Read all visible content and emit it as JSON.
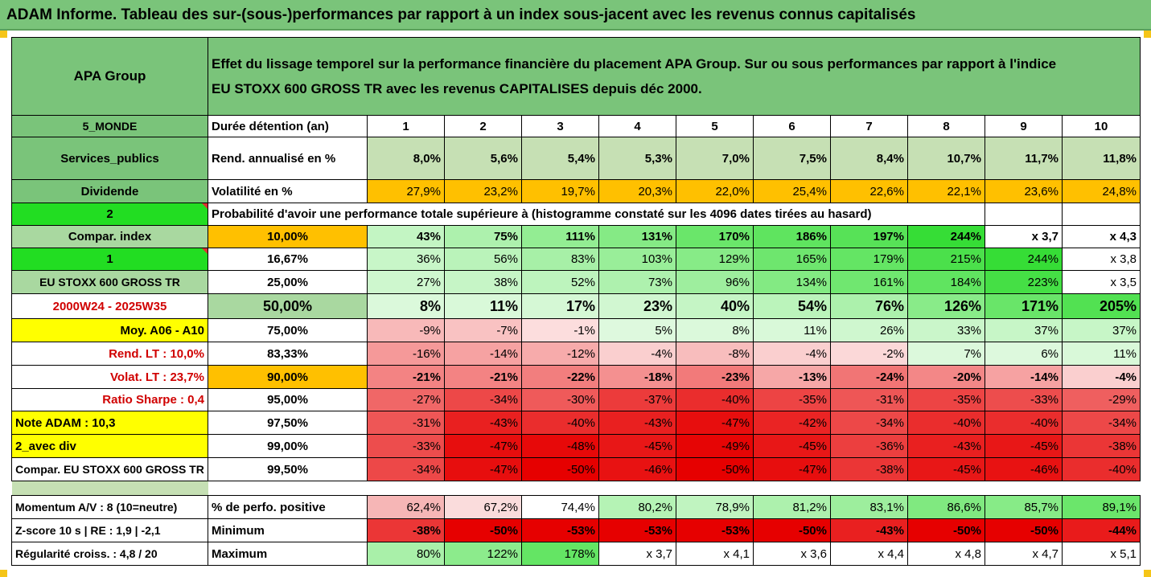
{
  "title": "ADAM Informe. Tableau des sur-(sous-)performances par rapport à un index sous-jacent avec les revenus connus capitalisés",
  "colors": {
    "header_green": "#7ac47a",
    "pale_green": "#c6e0b4",
    "amber": "#ffc000",
    "lime": "#22dd22",
    "yellow": "#ffff00",
    "red_text": "#d00000",
    "corner_marker": "#f5c518"
  },
  "header": {
    "company": "APA Group",
    "description_line1": "Effet du lissage temporel sur la performance financière du placement APA Group. Sur ou sous performances par rapport à l'indice",
    "description_line2": "EU STOXX 600 GROSS TR avec les revenus CAPITALISES depuis déc 2000."
  },
  "left_labels": {
    "region": "5_MONDE",
    "sector": "Services_publics",
    "type": "Dividende",
    "code": "2",
    "compar_index": "Compar. index",
    "index_code": "1",
    "index_name": "EU STOXX 600 GROSS TR",
    "period": "2000W24 - 2025W35",
    "moy": "Moy. A06 - A10",
    "rend_lt": "Rend. LT :   10,0%",
    "volat_lt": "Volat. LT :   23,7%",
    "ratio_sharpe": "Ratio Sharpe :    0,4",
    "note_adam": "Note ADAM : 10,3",
    "avec_div": "2_avec div",
    "compar_full": "Compar. EU STOXX 600 GROSS TR"
  },
  "rows_header": {
    "duree_label": "Durée détention (an)",
    "years": [
      "1",
      "2",
      "3",
      "4",
      "5",
      "6",
      "7",
      "8",
      "9",
      "10"
    ],
    "rend_label": "Rend. annualisé en %",
    "rend": [
      "8,0%",
      "5,6%",
      "5,4%",
      "5,3%",
      "7,0%",
      "7,5%",
      "8,4%",
      "10,7%",
      "11,7%",
      "11,8%"
    ],
    "vol_label": "Volatilité en %",
    "vol": [
      "27,9%",
      "23,2%",
      "19,7%",
      "20,3%",
      "22,0%",
      "25,4%",
      "22,6%",
      "22,1%",
      "23,6%",
      "24,8%"
    ],
    "proba_text": "Probabilité d'avoir une performance totale supérieure à (histogramme constaté sur les 4096 dates tirées au hasard)"
  },
  "prob_rows": [
    {
      "p": "10,00%",
      "v": [
        "43%",
        "75%",
        "111%",
        "131%",
        "170%",
        "186%",
        "197%",
        "244%",
        "x 3,7",
        "x 4,3"
      ]
    },
    {
      "p": "16,67%",
      "v": [
        "36%",
        "56%",
        "83%",
        "103%",
        "129%",
        "165%",
        "179%",
        "215%",
        "244%",
        "x 3,8"
      ]
    },
    {
      "p": "25,00%",
      "v": [
        "27%",
        "38%",
        "52%",
        "73%",
        "96%",
        "134%",
        "161%",
        "184%",
        "223%",
        "x 3,5"
      ]
    },
    {
      "p": "50,00%",
      "v": [
        "8%",
        "11%",
        "17%",
        "23%",
        "40%",
        "54%",
        "76%",
        "126%",
        "171%",
        "205%"
      ]
    },
    {
      "p": "75,00%",
      "v": [
        "-9%",
        "-7%",
        "-1%",
        "5%",
        "8%",
        "11%",
        "26%",
        "33%",
        "37%",
        "37%"
      ]
    },
    {
      "p": "83,33%",
      "v": [
        "-16%",
        "-14%",
        "-12%",
        "-4%",
        "-8%",
        "-4%",
        "-2%",
        "7%",
        "6%",
        "11%"
      ]
    },
    {
      "p": "90,00%",
      "v": [
        "-21%",
        "-21%",
        "-22%",
        "-18%",
        "-23%",
        "-13%",
        "-24%",
        "-20%",
        "-14%",
        "-4%"
      ]
    },
    {
      "p": "95,00%",
      "v": [
        "-27%",
        "-34%",
        "-30%",
        "-37%",
        "-40%",
        "-35%",
        "-31%",
        "-35%",
        "-33%",
        "-29%"
      ]
    },
    {
      "p": "97,50%",
      "v": [
        "-31%",
        "-43%",
        "-40%",
        "-43%",
        "-47%",
        "-42%",
        "-34%",
        "-40%",
        "-40%",
        "-34%"
      ]
    },
    {
      "p": "99,00%",
      "v": [
        "-33%",
        "-47%",
        "-48%",
        "-45%",
        "-49%",
        "-45%",
        "-36%",
        "-43%",
        "-45%",
        "-38%"
      ]
    },
    {
      "p": "99,50%",
      "v": [
        "-34%",
        "-47%",
        "-50%",
        "-46%",
        "-50%",
        "-47%",
        "-38%",
        "-45%",
        "-46%",
        "-40%"
      ]
    }
  ],
  "footer": {
    "momentum": "Momentum A/V : 8 (10=neutre)",
    "zscore": "Z-score 10 s  | RE : 1,9 | -2,1",
    "regularite": "Régularité croiss. : 4,8 / 20",
    "pos_label": "% de perfo. positive",
    "pos": [
      "62,4%",
      "67,2%",
      "74,4%",
      "80,2%",
      "78,9%",
      "81,2%",
      "83,1%",
      "86,6%",
      "85,7%",
      "89,1%"
    ],
    "min_label": "Minimum",
    "min": [
      "-38%",
      "-50%",
      "-53%",
      "-53%",
      "-53%",
      "-50%",
      "-43%",
      "-50%",
      "-50%",
      "-44%"
    ],
    "max_label": "Maximum",
    "max": [
      "80%",
      "122%",
      "178%",
      "x 3,7",
      "x 4,1",
      "x 3,6",
      "x 4,4",
      "x 4,8",
      "x 4,7",
      "x 5,1"
    ]
  }
}
